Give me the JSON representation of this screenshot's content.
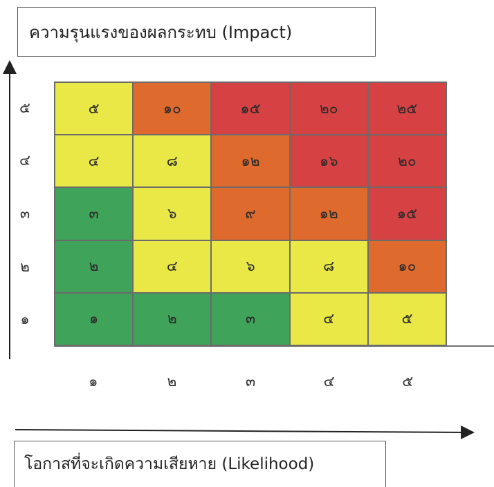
{
  "impact_title": "ความรุนแรงของผลกระทบ (Impact)",
  "likelihood_title": "โอกาสที่จะเกิดความเสียหาย (Likelihood)",
  "y_labels": [
    "๕",
    "๔",
    "๓",
    "๒",
    "๑"
  ],
  "x_labels": [
    "๑",
    "๒",
    "๓",
    "๔",
    "๕"
  ],
  "colors": {
    "green": "#3fa45a",
    "yellow": "#eae847",
    "orange": "#df6a2e",
    "red": "#d64243"
  },
  "matrix": [
    [
      {
        "v": "๕",
        "c": "yellow"
      },
      {
        "v": "๑๐",
        "c": "orange"
      },
      {
        "v": "๑๕",
        "c": "red"
      },
      {
        "v": "๒๐",
        "c": "red"
      },
      {
        "v": "๒๕",
        "c": "red"
      }
    ],
    [
      {
        "v": "๔",
        "c": "yellow"
      },
      {
        "v": "๘",
        "c": "yellow"
      },
      {
        "v": "๑๒",
        "c": "orange"
      },
      {
        "v": "๑๖",
        "c": "red"
      },
      {
        "v": "๒๐",
        "c": "red"
      }
    ],
    [
      {
        "v": "๓",
        "c": "green"
      },
      {
        "v": "๖",
        "c": "yellow"
      },
      {
        "v": "๙",
        "c": "orange"
      },
      {
        "v": "๑๒",
        "c": "orange"
      },
      {
        "v": "๑๕",
        "c": "red"
      }
    ],
    [
      {
        "v": "๒",
        "c": "green"
      },
      {
        "v": "๔",
        "c": "yellow"
      },
      {
        "v": "๖",
        "c": "yellow"
      },
      {
        "v": "๘",
        "c": "yellow"
      },
      {
        "v": "๑๐",
        "c": "orange"
      }
    ],
    [
      {
        "v": "๑",
        "c": "green"
      },
      {
        "v": "๒",
        "c": "green"
      },
      {
        "v": "๓",
        "c": "green"
      },
      {
        "v": "๔",
        "c": "yellow"
      },
      {
        "v": "๕",
        "c": "yellow"
      }
    ]
  ]
}
